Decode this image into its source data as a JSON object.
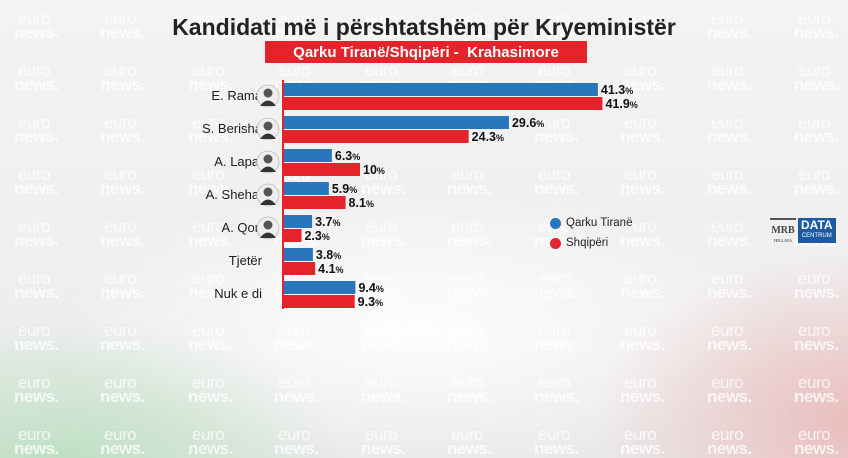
{
  "title": "Kandidati më i përshtatshëm për Kryeministër",
  "subtitle": "Qarku Tiranë/Shqipëri -  Krahasimore",
  "colors": {
    "qarku": "#2a76bd",
    "shqiperi": "#e4232b",
    "avatar_bg": "#eeeeee"
  },
  "watermark": {
    "line1": "euro",
    "line2": "news."
  },
  "logo": {
    "mrb": "MRB",
    "mrb_sub": "HILLAYA",
    "dc_line1": "DATA",
    "dc_line2": "CENTRUM"
  },
  "chart_data": {
    "type": "bar",
    "orientation": "horizontal",
    "title": "Kandidati më i përshtatshëm për Kryeministër",
    "subtitle": "Qarku Tiranë/Shqipëri -  Krahasimore",
    "categories": [
      "E. Rama",
      "S. Berisha",
      "A. Lapaj",
      "A. Shehaj",
      "A. Qori",
      "Tjetër",
      "Nuk e di"
    ],
    "has_avatar": [
      true,
      true,
      true,
      true,
      true,
      false,
      false
    ],
    "series": [
      {
        "name": "Qarku Tiranë",
        "values": [
          41.3,
          29.6,
          6.3,
          5.9,
          3.7,
          3.8,
          9.4
        ],
        "labels": [
          "41.3",
          "29.6",
          "6.3",
          "5.9",
          "3.7",
          "3.8",
          "9.4"
        ]
      },
      {
        "name": "Shqipëri",
        "values": [
          41.9,
          24.3,
          10,
          8.1,
          2.3,
          4.1,
          9.3
        ],
        "labels": [
          "41.9",
          "24.3",
          "10",
          "8.1",
          "2.3",
          "4.1",
          "9.3"
        ]
      }
    ],
    "unit": "%",
    "xlim": [
      0,
      42
    ],
    "legend_position": "right"
  }
}
